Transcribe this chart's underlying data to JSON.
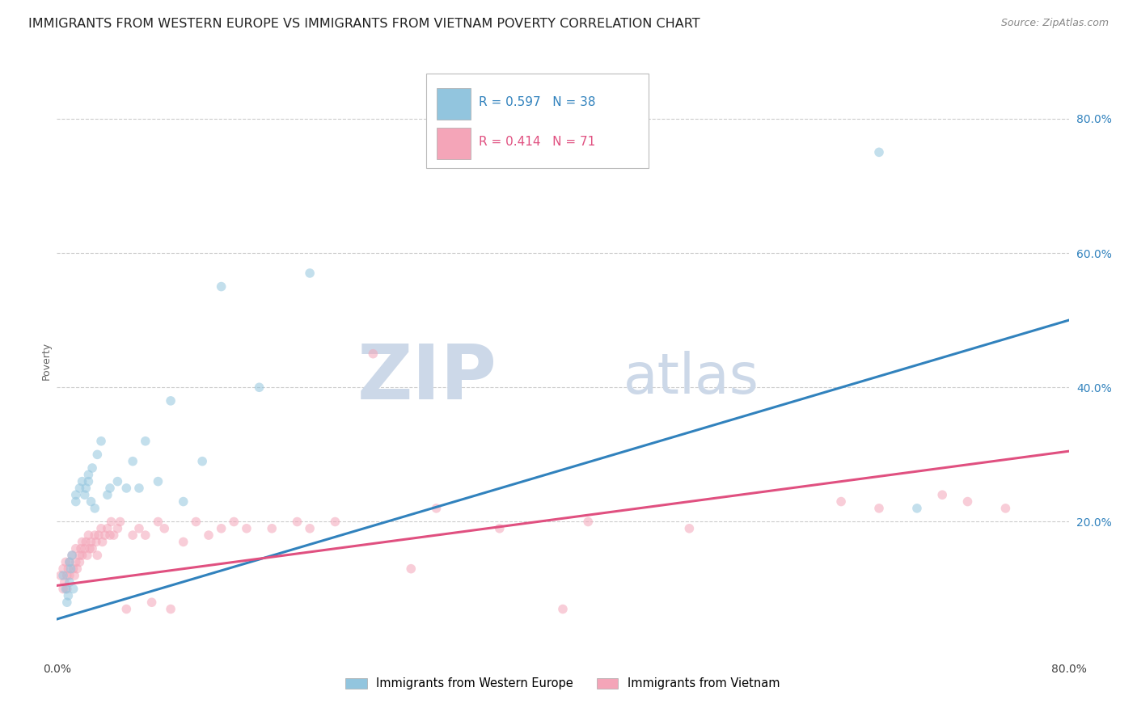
{
  "title": "IMMIGRANTS FROM WESTERN EUROPE VS IMMIGRANTS FROM VIETNAM POVERTY CORRELATION CHART",
  "source": "Source: ZipAtlas.com",
  "ylabel": "Poverty",
  "legend_blue_r": "R = 0.597",
  "legend_blue_n": "N = 38",
  "legend_pink_r": "R = 0.414",
  "legend_pink_n": "N = 71",
  "legend_label_blue": "Immigrants from Western Europe",
  "legend_label_pink": "Immigrants from Vietnam",
  "blue_scatter_x": [
    0.005,
    0.007,
    0.008,
    0.009,
    0.01,
    0.01,
    0.011,
    0.012,
    0.013,
    0.015,
    0.015,
    0.018,
    0.02,
    0.022,
    0.023,
    0.025,
    0.025,
    0.027,
    0.028,
    0.03,
    0.032,
    0.035,
    0.04,
    0.042,
    0.048,
    0.055,
    0.06,
    0.065,
    0.07,
    0.08,
    0.09,
    0.1,
    0.115,
    0.13,
    0.16,
    0.2,
    0.65,
    0.68
  ],
  "blue_scatter_y": [
    0.12,
    0.1,
    0.08,
    0.09,
    0.14,
    0.11,
    0.13,
    0.15,
    0.1,
    0.23,
    0.24,
    0.25,
    0.26,
    0.24,
    0.25,
    0.26,
    0.27,
    0.23,
    0.28,
    0.22,
    0.3,
    0.32,
    0.24,
    0.25,
    0.26,
    0.25,
    0.29,
    0.25,
    0.32,
    0.26,
    0.38,
    0.23,
    0.29,
    0.55,
    0.4,
    0.57,
    0.75,
    0.22
  ],
  "pink_scatter_x": [
    0.003,
    0.005,
    0.005,
    0.006,
    0.007,
    0.008,
    0.008,
    0.009,
    0.01,
    0.01,
    0.012,
    0.013,
    0.014,
    0.015,
    0.015,
    0.016,
    0.018,
    0.018,
    0.019,
    0.02,
    0.02,
    0.022,
    0.023,
    0.024,
    0.025,
    0.026,
    0.027,
    0.028,
    0.03,
    0.031,
    0.032,
    0.033,
    0.035,
    0.036,
    0.038,
    0.04,
    0.042,
    0.043,
    0.045,
    0.048,
    0.05,
    0.055,
    0.06,
    0.065,
    0.07,
    0.075,
    0.08,
    0.085,
    0.09,
    0.1,
    0.11,
    0.12,
    0.13,
    0.14,
    0.15,
    0.17,
    0.19,
    0.2,
    0.22,
    0.25,
    0.28,
    0.3,
    0.35,
    0.4,
    0.42,
    0.5,
    0.62,
    0.65,
    0.7,
    0.72,
    0.75
  ],
  "pink_scatter_y": [
    0.12,
    0.1,
    0.13,
    0.11,
    0.14,
    0.12,
    0.1,
    0.13,
    0.14,
    0.12,
    0.15,
    0.13,
    0.12,
    0.16,
    0.14,
    0.13,
    0.14,
    0.15,
    0.16,
    0.17,
    0.15,
    0.16,
    0.17,
    0.15,
    0.18,
    0.16,
    0.17,
    0.16,
    0.18,
    0.17,
    0.15,
    0.18,
    0.19,
    0.17,
    0.18,
    0.19,
    0.18,
    0.2,
    0.18,
    0.19,
    0.2,
    0.07,
    0.18,
    0.19,
    0.18,
    0.08,
    0.2,
    0.19,
    0.07,
    0.17,
    0.2,
    0.18,
    0.19,
    0.2,
    0.19,
    0.19,
    0.2,
    0.19,
    0.2,
    0.45,
    0.13,
    0.22,
    0.19,
    0.07,
    0.2,
    0.19,
    0.23,
    0.22,
    0.24,
    0.23,
    0.22
  ],
  "blue_line_x": [
    0.0,
    0.8
  ],
  "blue_line_y": [
    0.055,
    0.5
  ],
  "pink_line_x": [
    0.0,
    0.8
  ],
  "pink_line_y": [
    0.105,
    0.305
  ],
  "blue_color": "#92c5de",
  "pink_color": "#f4a5b8",
  "blue_line_color": "#3182bd",
  "pink_line_color": "#e05080",
  "grid_color": "#cccccc",
  "watermark_zip": "ZIP",
  "watermark_atlas": "atlas",
  "watermark_color": "#ccd8e8",
  "background_color": "#ffffff",
  "title_fontsize": 11.5,
  "source_fontsize": 9,
  "scatter_alpha": 0.55,
  "scatter_size": 70,
  "xlim": [
    0.0,
    0.8
  ],
  "ylim": [
    0.0,
    0.88
  ],
  "ytick_positions": [
    0.2,
    0.4,
    0.6,
    0.8
  ],
  "ytick_labels": [
    "20.0%",
    "40.0%",
    "60.0%",
    "80.0%"
  ],
  "xtick_left_label": "0.0%",
  "xtick_right_label": "80.0%"
}
